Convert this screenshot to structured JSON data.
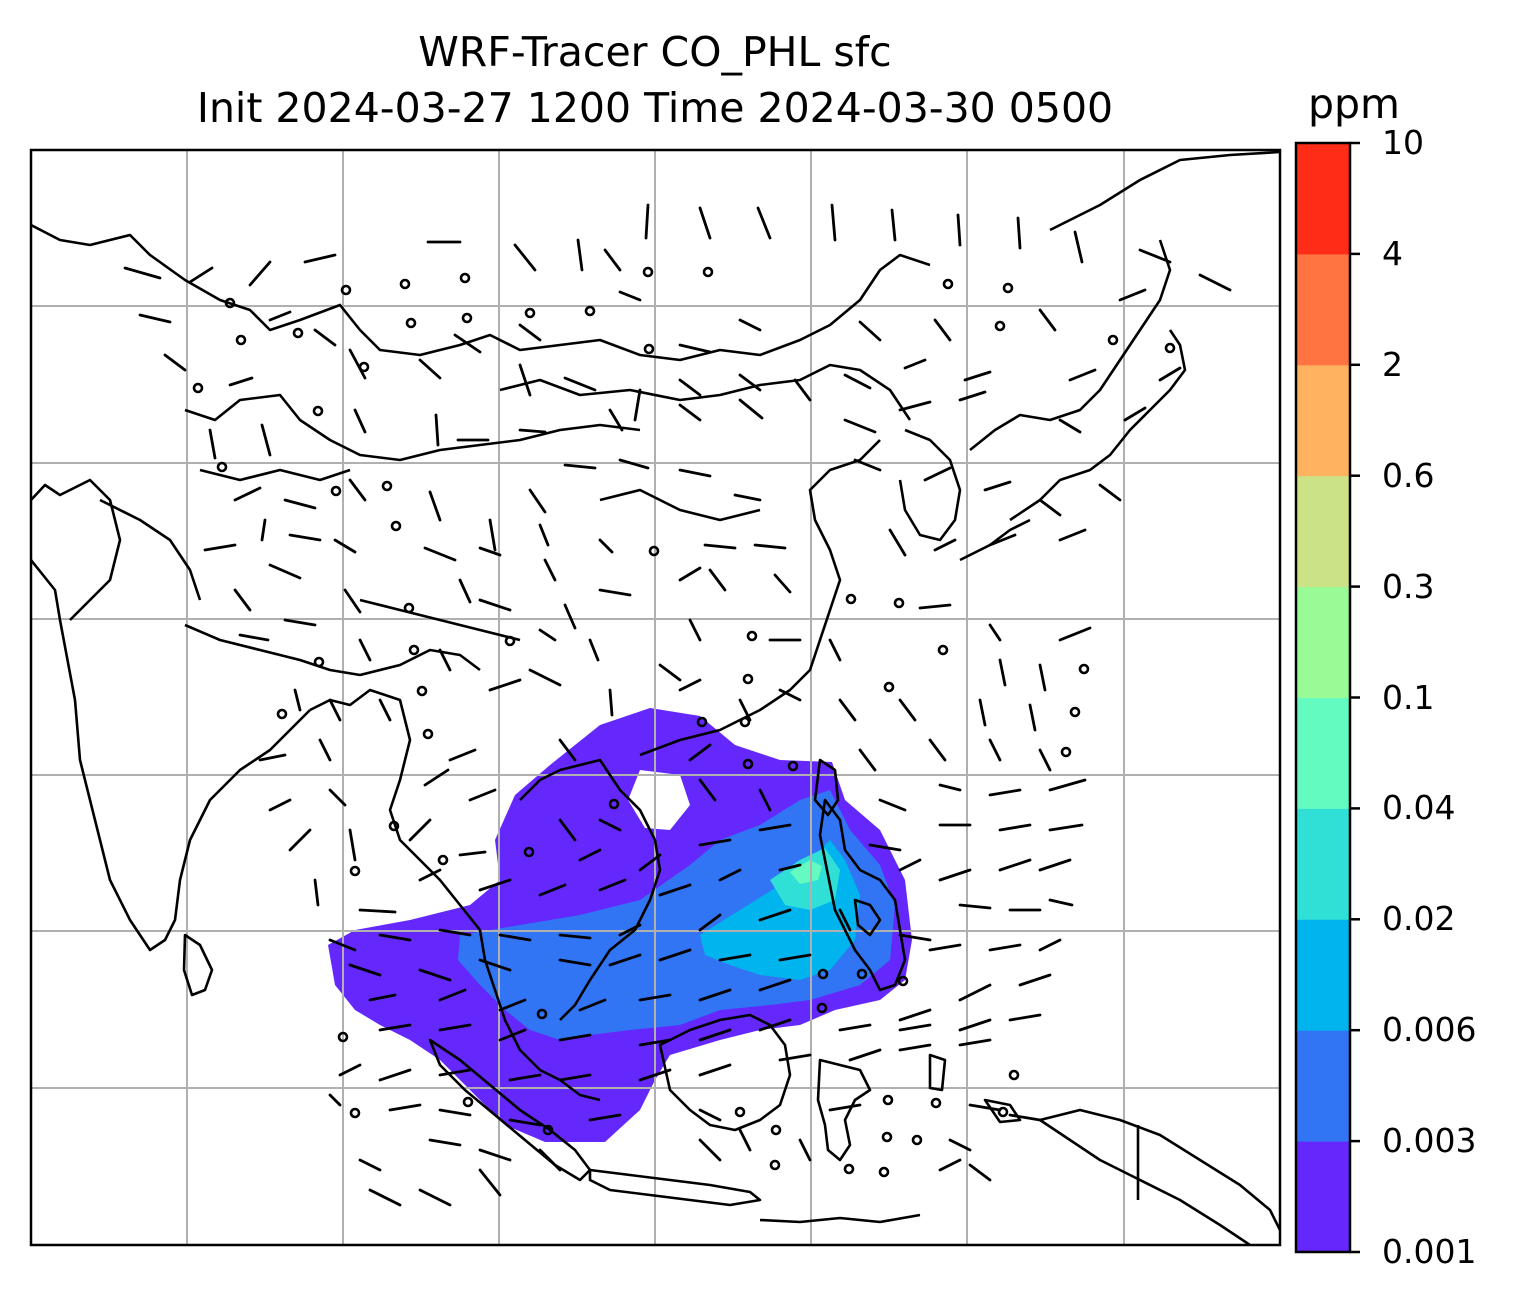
{
  "title": {
    "line1": "WRF-Tracer CO_PHL sfc",
    "line2": "Init 2024-03-27 1200 Time 2024-03-30 0500"
  },
  "colorbar": {
    "unit": "ppm",
    "levels": [
      "0.001",
      "0.003",
      "0.006",
      "0.02",
      "0.04",
      "0.1",
      "0.3",
      "0.6",
      "2",
      "4",
      "10"
    ],
    "colors": [
      "#6528fc",
      "#3275f4",
      "#00b4ee",
      "#30e0d6",
      "#63fbc0",
      "#98fb96",
      "#cce286",
      "#ffb260",
      "#ff7440",
      "#ff2c18"
    ]
  },
  "map": {
    "gridlines": true,
    "features": [
      "coastlines",
      "country-borders",
      "wind-barbs",
      "tracer-concentration"
    ],
    "coast_color": "#000000",
    "grid_color": "#b0b0b0",
    "tracer_levels_present": [
      "0.001",
      "0.003",
      "0.006",
      "0.02",
      "0.04"
    ]
  }
}
